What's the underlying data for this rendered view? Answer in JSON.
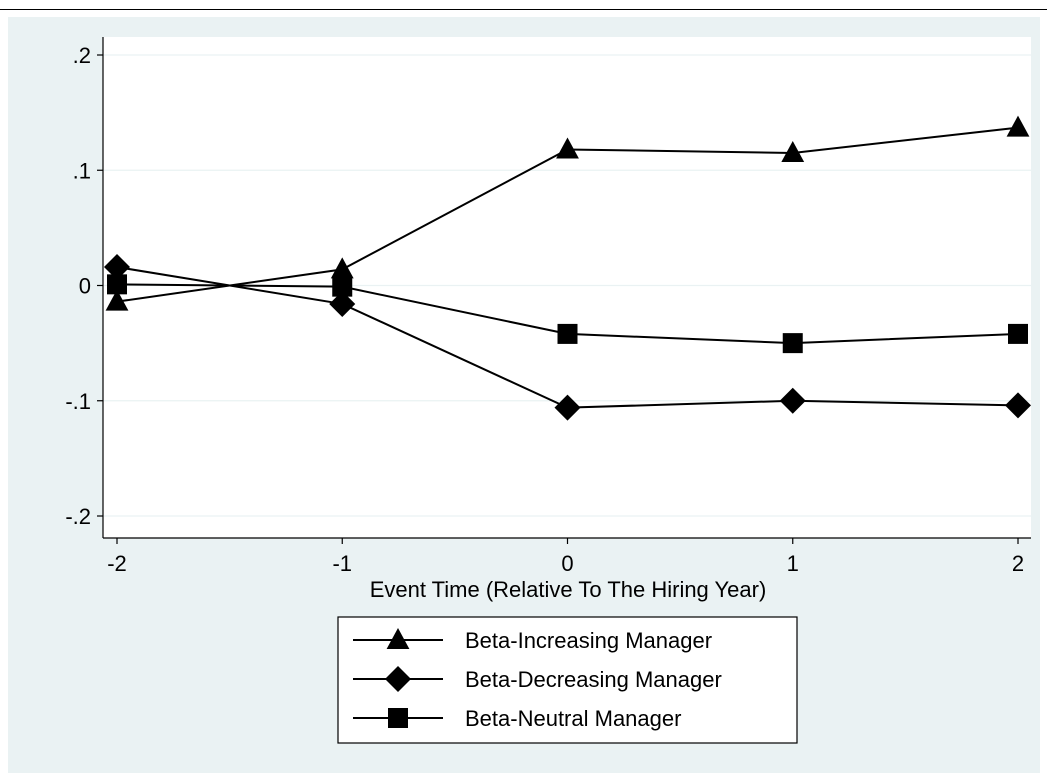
{
  "chart_data": {
    "type": "line",
    "title": "",
    "xlabel": "Event Time (Relative To The Hiring Year)",
    "ylabel": "",
    "x": [
      -2,
      -1,
      0,
      1,
      2
    ],
    "x_tick_labels": [
      "-2",
      "-1",
      "0",
      "1",
      "2"
    ],
    "y_ticks": [
      0.2,
      0.1,
      0,
      -0.1,
      -0.2
    ],
    "y_tick_labels": [
      ".2",
      ".1",
      "0",
      "-.1",
      "-.2"
    ],
    "xlim": [
      -2,
      2
    ],
    "ylim": [
      -0.2,
      0.2
    ],
    "grid": true,
    "legend_position": "bottom",
    "colors": {
      "background": "#eaf2f3",
      "plot": "#ffffff",
      "line": "#000000",
      "grid": "#eaf2f3"
    },
    "series": [
      {
        "name": "Beta-Increasing Manager",
        "marker": "triangle",
        "values": [
          -0.014,
          0.014,
          0.118,
          0.115,
          0.137
        ]
      },
      {
        "name": "Beta-Decreasing Manager",
        "marker": "diamond",
        "values": [
          0.016,
          -0.016,
          -0.106,
          -0.1,
          -0.104
        ]
      },
      {
        "name": "Beta-Neutral Manager",
        "marker": "square",
        "values": [
          0.001,
          -0.001,
          -0.042,
          -0.05,
          -0.042
        ]
      }
    ]
  }
}
